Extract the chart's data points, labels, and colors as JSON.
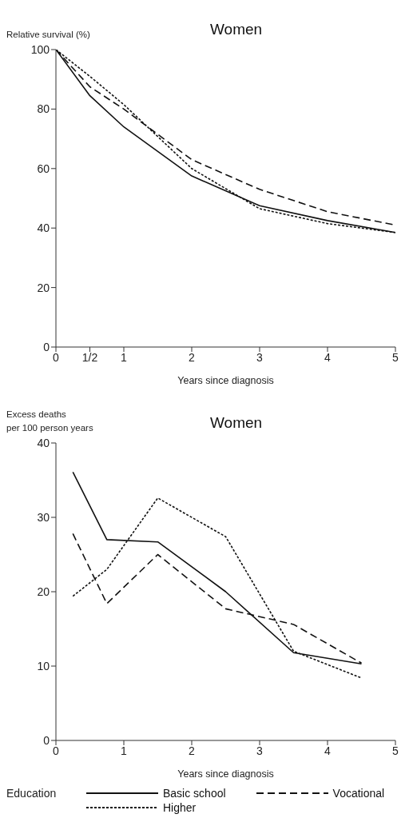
{
  "chart_data": [
    {
      "type": "line",
      "title": "Women",
      "ylabel": "Relative survival (%)",
      "xlabel": "Years since diagnosis",
      "x": [
        0,
        0.5,
        1,
        2,
        3,
        4,
        5
      ],
      "series": [
        {
          "color": "#111111",
          "line_style": "solid",
          "values": [
            100,
            84.5,
            74,
            57.5,
            47.5,
            42.5,
            38.5
          ]
        },
        {
          "color": "#111111",
          "line_style": "dashed",
          "values": [
            100,
            87.5,
            80,
            63,
            53,
            45.5,
            41
          ]
        },
        {
          "color": "#111111",
          "line_style": "dotted",
          "values": [
            100,
            91,
            81.5,
            60,
            46.5,
            41.5,
            38.5
          ]
        }
      ],
      "xlim": [
        0,
        5
      ],
      "xticks": [
        0,
        {
          "value": 0.5,
          "label": "1/2"
        },
        1,
        2,
        3,
        4,
        5
      ],
      "ylim": [
        0,
        100
      ],
      "yticks": [
        0,
        20,
        40,
        60,
        80,
        100
      ]
    },
    {
      "type": "line",
      "title": "Women",
      "ylabel": "Excess deaths\nper 100 person years",
      "xlabel": "Years since diagnosis",
      "x": [
        0.25,
        0.75,
        1.5,
        2.5,
        3.5,
        4.5
      ],
      "series": [
        {
          "name": "Basic school",
          "color": "#111111",
          "line_style": "solid",
          "values": [
            36.1,
            27.0,
            26.7,
            20.0,
            11.8,
            10.3
          ]
        },
        {
          "name": "Vocational",
          "color": "#111111",
          "line_style": "dashed",
          "values": [
            27.8,
            18.4,
            25.0,
            17.7,
            15.6,
            10.4
          ]
        },
        {
          "name": "Higher",
          "color": "#111111",
          "line_style": "dotted",
          "values": [
            19.4,
            23.0,
            32.6,
            27.4,
            12.0,
            8.4
          ]
        }
      ],
      "xlim": [
        0,
        5
      ],
      "xticks": [
        0,
        1,
        2,
        3,
        4,
        5
      ],
      "ylim": [
        0,
        40
      ],
      "yticks": [
        0,
        10,
        20,
        30,
        40
      ],
      "legend": "bottom",
      "legend_title": "Education"
    }
  ]
}
